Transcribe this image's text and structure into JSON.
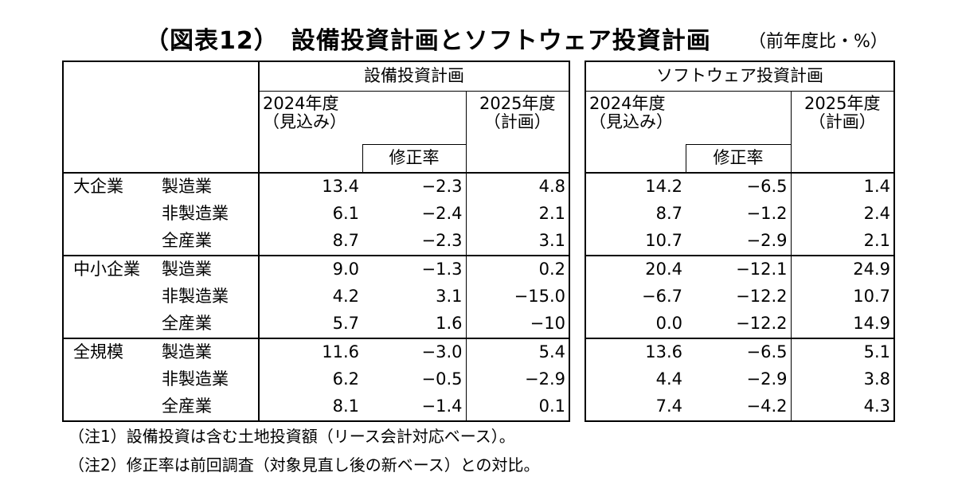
{
  "title": "（図表12）　設備投資計画とソフトウェア投資計画",
  "unit": "（前年度比・%）",
  "sections": {
    "capex": "設備投資計画",
    "software": "ソフトウェア投資計画"
  },
  "headers": {
    "fy2024_line1": "2024年度",
    "fy2024_line2": "（見込み）",
    "revision": "修正率",
    "fy2025_line1": "2025年度",
    "fy2025_line2": "（計画）"
  },
  "groups": [
    {
      "name": "大企業",
      "rows": [
        {
          "industry": "製造業",
          "capex": [
            "13.4",
            "−2.3",
            "4.8"
          ],
          "software": [
            "14.2",
            "−6.5",
            "1.4"
          ]
        },
        {
          "industry": "非製造業",
          "capex": [
            "6.1",
            "−2.4",
            "2.1"
          ],
          "software": [
            "8.7",
            "−1.2",
            "2.4"
          ]
        },
        {
          "industry": "全産業",
          "capex": [
            "8.7",
            "−2.3",
            "3.1"
          ],
          "software": [
            "10.7",
            "−2.9",
            "2.1"
          ]
        }
      ]
    },
    {
      "name": "中小企業",
      "rows": [
        {
          "industry": "製造業",
          "capex": [
            "9.0",
            "−1.3",
            "0.2"
          ],
          "software": [
            "20.4",
            "−12.1",
            "24.9"
          ]
        },
        {
          "industry": "非製造業",
          "capex": [
            "4.2",
            "3.1",
            "−15.0"
          ],
          "software": [
            "−6.7",
            "−12.2",
            "10.7"
          ]
        },
        {
          "industry": "全産業",
          "capex": [
            "5.7",
            "1.6",
            "−10"
          ],
          "software": [
            "0.0",
            "−12.2",
            "14.9"
          ]
        }
      ]
    },
    {
      "name": "全規模",
      "rows": [
        {
          "industry": "製造業",
          "capex": [
            "11.6",
            "−3.0",
            "5.4"
          ],
          "software": [
            "13.6",
            "−6.5",
            "5.1"
          ]
        },
        {
          "industry": "非製造業",
          "capex": [
            "6.2",
            "−0.5",
            "−2.9"
          ],
          "software": [
            "4.4",
            "−2.9",
            "3.8"
          ]
        },
        {
          "industry": "全産業",
          "capex": [
            "8.1",
            "−1.4",
            "0.1"
          ],
          "software": [
            "7.4",
            "−4.2",
            "4.3"
          ]
        }
      ]
    }
  ],
  "notes": [
    "（注1）設備投資は含む土地投資額（リース会計対応ベース）。",
    "（注2）修正率は前回調査（対象見直し後の新ベース）との対比。"
  ]
}
